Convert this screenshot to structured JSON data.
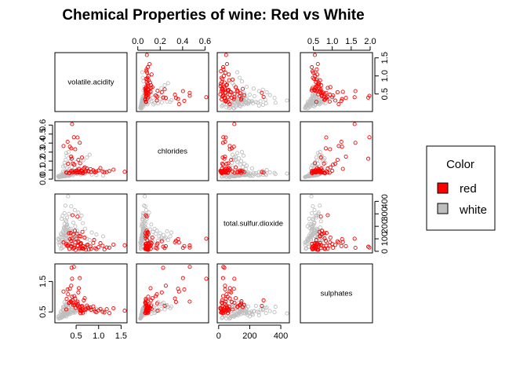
{
  "chart_data": {
    "type": "scatter",
    "title": "Chemical Properties of wine: Red vs White",
    "variables": [
      "volatile.acidity",
      "chlorides",
      "total.sulfur.dioxide",
      "sulphates"
    ],
    "axis_ranges": {
      "volatile.acidity": [
        0.08,
        1.58
      ],
      "chlorides": [
        0.009,
        0.611
      ],
      "total.sulfur.dioxide": [
        6,
        440
      ],
      "sulphates": [
        0.22,
        2.0
      ]
    },
    "ticks": {
      "volatile.acidity": [
        "0.5",
        "1.0",
        "1.5"
      ],
      "chlorides": [
        "0.0",
        "0.2",
        "0.4",
        "0.6"
      ],
      "total.sulfur.dioxide": [
        "0",
        "200",
        "400"
      ],
      "sulphates": [
        "0.5",
        "1.0",
        "1.5",
        "2.0"
      ]
    },
    "tick_values": {
      "volatile.acidity": [
        0.5,
        1.0,
        1.5
      ],
      "chlorides": [
        0.0,
        0.2,
        0.4,
        0.6
      ],
      "total.sulfur.dioxide": [
        0,
        200,
        400
      ],
      "sulphates": [
        0.5,
        1.0,
        1.5,
        2.0
      ]
    },
    "left_ticks": {
      "chlorides": [
        "0.0",
        "0.1",
        "0.2",
        "0.3",
        "0.4",
        "0.5",
        "0.6"
      ],
      "sulphates": [
        "0.5",
        "1.5"
      ]
    },
    "left_tick_values": {
      "chlorides": [
        0.0,
        0.1,
        0.2,
        0.3,
        0.4,
        0.5,
        0.6
      ],
      "sulphates": [
        0.5,
        1.5
      ]
    },
    "right_ticks": {
      "volatile.acidity": [
        "0.5",
        "1.0",
        "1.5"
      ],
      "total.sulfur.dioxide": [
        "0",
        "100",
        "200",
        "300",
        "400"
      ]
    },
    "right_tick_values": {
      "volatile.acidity": [
        0.5,
        1.0,
        1.5
      ],
      "total.sulfur.dioxide": [
        0,
        100,
        200,
        300,
        400
      ]
    },
    "series": [
      {
        "name": "red",
        "color": "#ff0000",
        "points": [
          [
            0.7,
            0.076,
            34,
            0.56
          ],
          [
            0.88,
            0.098,
            67,
            0.68
          ],
          [
            0.76,
            0.092,
            54,
            0.65
          ],
          [
            0.28,
            0.075,
            60,
            0.58
          ],
          [
            0.66,
            0.075,
            40,
            0.56
          ],
          [
            0.6,
            0.069,
            59,
            0.46
          ],
          [
            0.65,
            0.065,
            21,
            0.47
          ],
          [
            0.58,
            0.073,
            18,
            0.57
          ],
          [
            0.5,
            0.071,
            102,
            0.8
          ],
          [
            0.61,
            0.097,
            65,
            0.54
          ],
          [
            0.62,
            0.089,
            24,
            0.52
          ],
          [
            0.56,
            0.114,
            73,
            1.28
          ],
          [
            0.59,
            0.176,
            62,
            0.54
          ],
          [
            0.32,
            0.17,
            51,
            1.08
          ],
          [
            0.22,
            0.368,
            71,
            1.17
          ],
          [
            0.39,
            0.341,
            84,
            0.83
          ],
          [
            0.43,
            0.172,
            23,
            0.78
          ],
          [
            0.49,
            0.092,
            11,
            0.63
          ],
          [
            0.4,
            0.226,
            37,
            1.95
          ],
          [
            0.39,
            0.25,
            41,
            1.36
          ],
          [
            1.33,
            0.105,
            54,
            0.62
          ],
          [
            1.04,
            0.123,
            65,
            0.6
          ],
          [
            0.95,
            0.086,
            18,
            0.49
          ],
          [
            0.58,
            0.403,
            28,
            1.61
          ],
          [
            0.53,
            0.463,
            46,
            0.84
          ],
          [
            0.45,
            0.464,
            30,
            1.98
          ],
          [
            0.41,
            0.611,
            101,
            1.59
          ],
          [
            0.31,
            0.415,
            42,
            1.24
          ],
          [
            0.48,
            0.332,
            72,
            0.94
          ],
          [
            0.36,
            0.36,
            98,
            1.26
          ],
          [
            0.63,
            0.24,
            26,
            0.7
          ],
          [
            0.55,
            0.214,
            80,
            1.14
          ],
          [
            0.74,
            0.118,
            50,
            0.71
          ],
          [
            0.82,
            0.11,
            38,
            0.64
          ],
          [
            0.9,
            0.084,
            90,
            0.58
          ],
          [
            1.0,
            0.095,
            33,
            0.55
          ],
          [
            1.13,
            0.077,
            15,
            0.48
          ],
          [
            1.24,
            0.089,
            29,
            0.46
          ],
          [
            0.69,
            0.13,
            110,
            0.95
          ],
          [
            0.46,
            0.16,
            28,
            1.02
          ],
          [
            0.52,
            0.095,
            140,
            0.74
          ],
          [
            0.44,
            0.078,
            135,
            0.72
          ],
          [
            0.34,
            0.068,
            145,
            0.79
          ],
          [
            0.57,
            0.082,
            122,
            0.67
          ],
          [
            0.64,
            0.088,
            155,
            0.66
          ],
          [
            0.47,
            0.079,
            165,
            0.73
          ],
          [
            0.38,
            0.087,
            147,
            0.85
          ],
          [
            0.53,
            0.08,
            278,
            0.7
          ],
          [
            0.42,
            0.073,
            289,
            0.88
          ],
          [
            0.72,
            0.09,
            12,
            0.6
          ],
          [
            0.83,
            0.08,
            20,
            0.57
          ],
          [
            0.92,
            0.074,
            25,
            0.52
          ],
          [
            1.09,
            0.083,
            44,
            0.5
          ],
          [
            1.58,
            0.081,
            48,
            0.54
          ],
          [
            1.18,
            0.078,
            31,
            0.59
          ],
          [
            0.78,
            0.085,
            14,
            0.62
          ],
          [
            0.54,
            0.072,
            42,
            0.76
          ],
          [
            0.35,
            0.066,
            19,
            0.81
          ],
          [
            0.29,
            0.071,
            47,
            0.93
          ],
          [
            0.41,
            0.093,
            58,
            1.0
          ],
          [
            0.67,
            0.117,
            22,
            0.88
          ],
          [
            0.6,
            0.07,
            120,
            0.68
          ]
        ]
      },
      {
        "name": "white",
        "color": "#bebebe",
        "points": [
          [
            0.27,
            0.045,
            170,
            0.45
          ],
          [
            0.3,
            0.049,
            132,
            0.49
          ],
          [
            0.28,
            0.05,
            97,
            0.44
          ],
          [
            0.23,
            0.058,
            186,
            0.4
          ],
          [
            0.32,
            0.044,
            136,
            0.47
          ],
          [
            0.22,
            0.047,
            129,
            0.45
          ],
          [
            0.18,
            0.036,
            133,
            0.48
          ],
          [
            0.16,
            0.05,
            140,
            0.52
          ],
          [
            0.26,
            0.032,
            105,
            0.38
          ],
          [
            0.21,
            0.043,
            163,
            0.55
          ],
          [
            0.24,
            0.041,
            142,
            0.5
          ],
          [
            0.19,
            0.038,
            118,
            0.42
          ],
          [
            0.33,
            0.052,
            158,
            0.46
          ],
          [
            0.2,
            0.035,
            90,
            0.36
          ],
          [
            0.29,
            0.04,
            210,
            0.51
          ],
          [
            0.25,
            0.046,
            175,
            0.62
          ],
          [
            0.35,
            0.054,
            150,
            0.57
          ],
          [
            0.15,
            0.031,
            110,
            0.41
          ],
          [
            0.31,
            0.048,
            195,
            0.47
          ],
          [
            0.27,
            0.039,
            125,
            0.39
          ],
          [
            0.41,
            0.06,
            160,
            0.66
          ],
          [
            0.44,
            0.055,
            230,
            0.53
          ],
          [
            0.38,
            0.047,
            180,
            0.59
          ],
          [
            0.36,
            0.042,
            145,
            0.43
          ],
          [
            0.48,
            0.063,
            200,
            0.48
          ],
          [
            0.52,
            0.058,
            165,
            0.54
          ],
          [
            0.56,
            0.067,
            140,
            0.61
          ],
          [
            0.6,
            0.051,
            120,
            0.45
          ],
          [
            0.22,
            0.036,
            80,
            0.35
          ],
          [
            0.17,
            0.029,
            62,
            0.33
          ],
          [
            0.14,
            0.027,
            75,
            0.31
          ],
          [
            0.12,
            0.03,
            95,
            0.37
          ],
          [
            0.1,
            0.033,
            100,
            0.34
          ],
          [
            0.26,
            0.044,
            250,
            0.5
          ],
          [
            0.3,
            0.052,
            270,
            0.58
          ],
          [
            0.34,
            0.057,
            300,
            0.63
          ],
          [
            0.24,
            0.046,
            305,
            0.46
          ],
          [
            0.28,
            0.065,
            240,
            0.7
          ],
          [
            0.23,
            0.072,
            190,
            0.68
          ],
          [
            0.21,
            0.085,
            150,
            0.54
          ],
          [
            0.27,
            0.095,
            130,
            0.48
          ],
          [
            0.35,
            0.11,
            175,
            0.52
          ],
          [
            0.4,
            0.135,
            155,
            0.57
          ],
          [
            0.45,
            0.16,
            140,
            0.5
          ],
          [
            0.5,
            0.19,
            120,
            0.55
          ],
          [
            0.66,
            0.21,
            110,
            0.6
          ],
          [
            0.74,
            0.24,
            100,
            0.58
          ],
          [
            0.8,
            0.27,
            90,
            0.66
          ],
          [
            0.3,
            0.12,
            215,
            0.44
          ],
          [
            0.25,
            0.15,
            180,
            0.46
          ],
          [
            0.33,
            0.17,
            165,
            0.63
          ],
          [
            0.37,
            0.2,
            145,
            0.75
          ],
          [
            0.42,
            0.23,
            130,
            0.8
          ],
          [
            0.29,
            0.26,
            160,
            0.72
          ],
          [
            0.58,
            0.08,
            260,
            0.48
          ],
          [
            0.65,
            0.07,
            225,
            0.52
          ],
          [
            0.7,
            0.06,
            180,
            0.49
          ],
          [
            0.85,
            0.05,
            150,
            0.57
          ],
          [
            0.95,
            0.045,
            135,
            0.6
          ],
          [
            1.1,
            0.04,
            120,
            0.55
          ],
          [
            0.62,
            0.09,
            285,
            0.59
          ],
          [
            0.55,
            0.1,
            310,
            0.64
          ],
          [
            0.47,
            0.075,
            330,
            0.53
          ],
          [
            0.39,
            0.068,
            360,
            0.49
          ],
          [
            0.32,
            0.062,
            440,
            0.45
          ],
          [
            0.26,
            0.055,
            366,
            0.67
          ],
          [
            0.2,
            0.048,
            285,
            0.56
          ],
          [
            0.18,
            0.042,
            260,
            0.39
          ],
          [
            0.24,
            0.037,
            220,
            0.4
          ],
          [
            0.28,
            0.034,
            200,
            0.35
          ],
          [
            0.34,
            0.036,
            110,
            0.42
          ],
          [
            0.31,
            0.039,
            85,
            0.44
          ],
          [
            0.36,
            0.041,
            60,
            0.5
          ],
          [
            0.43,
            0.043,
            40,
            0.47
          ],
          [
            0.22,
            0.03,
            35,
            0.38
          ],
          [
            0.19,
            0.028,
            25,
            0.32
          ],
          [
            0.16,
            0.026,
            20,
            0.3
          ],
          [
            0.13,
            0.024,
            50,
            0.29
          ],
          [
            0.11,
            0.022,
            70,
            0.28
          ],
          [
            0.28,
            0.29,
            120,
            0.62
          ],
          [
            0.33,
            0.3,
            150,
            0.68
          ],
          [
            0.38,
            0.25,
            110,
            0.71
          ],
          [
            0.27,
            0.215,
            95,
            0.77
          ],
          [
            0.24,
            0.18,
            85,
            0.82
          ],
          [
            0.21,
            0.14,
            70,
            0.66
          ],
          [
            0.47,
            0.125,
            90,
            0.74
          ],
          [
            0.53,
            0.105,
            105,
            0.69
          ],
          [
            0.59,
            0.115,
            60,
            0.62
          ]
        ]
      }
    ],
    "legend": {
      "title": "Color",
      "entries": [
        "red",
        "white"
      ],
      "position": "right"
    }
  }
}
